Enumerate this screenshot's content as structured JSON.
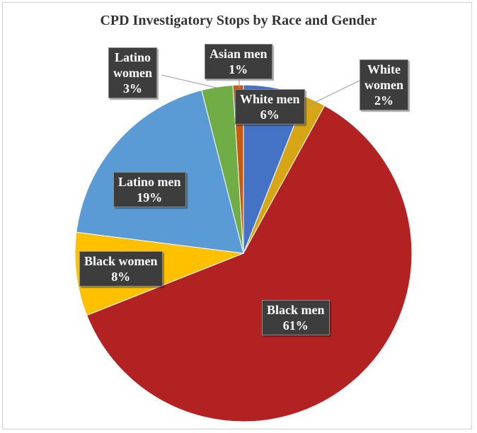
{
  "chart_data": {
    "type": "pie",
    "title": "CPD Investigatory Stops by Race and Gender",
    "slices": [
      {
        "label": "White men",
        "value": 6,
        "display": "6%",
        "color": "#4472c4"
      },
      {
        "label": "White women",
        "value": 2,
        "display": "2%",
        "color": "#d6a617"
      },
      {
        "label": "Black men",
        "value": 61,
        "display": "61%",
        "color": "#b22222"
      },
      {
        "label": "Black women",
        "value": 8,
        "display": "8%",
        "color": "#ffc000"
      },
      {
        "label": "Latino men",
        "value": 19,
        "display": "19%",
        "color": "#5b9bd5"
      },
      {
        "label": "Latino women",
        "value": 3,
        "display": "3%",
        "color": "#70ad47"
      },
      {
        "label": "Asian men",
        "value": 1,
        "display": "1%",
        "color": "#c55a11"
      }
    ],
    "label_lines": {
      "white_women": [
        "White",
        "women"
      ],
      "latino_women": [
        "Latino",
        "women"
      ]
    }
  }
}
